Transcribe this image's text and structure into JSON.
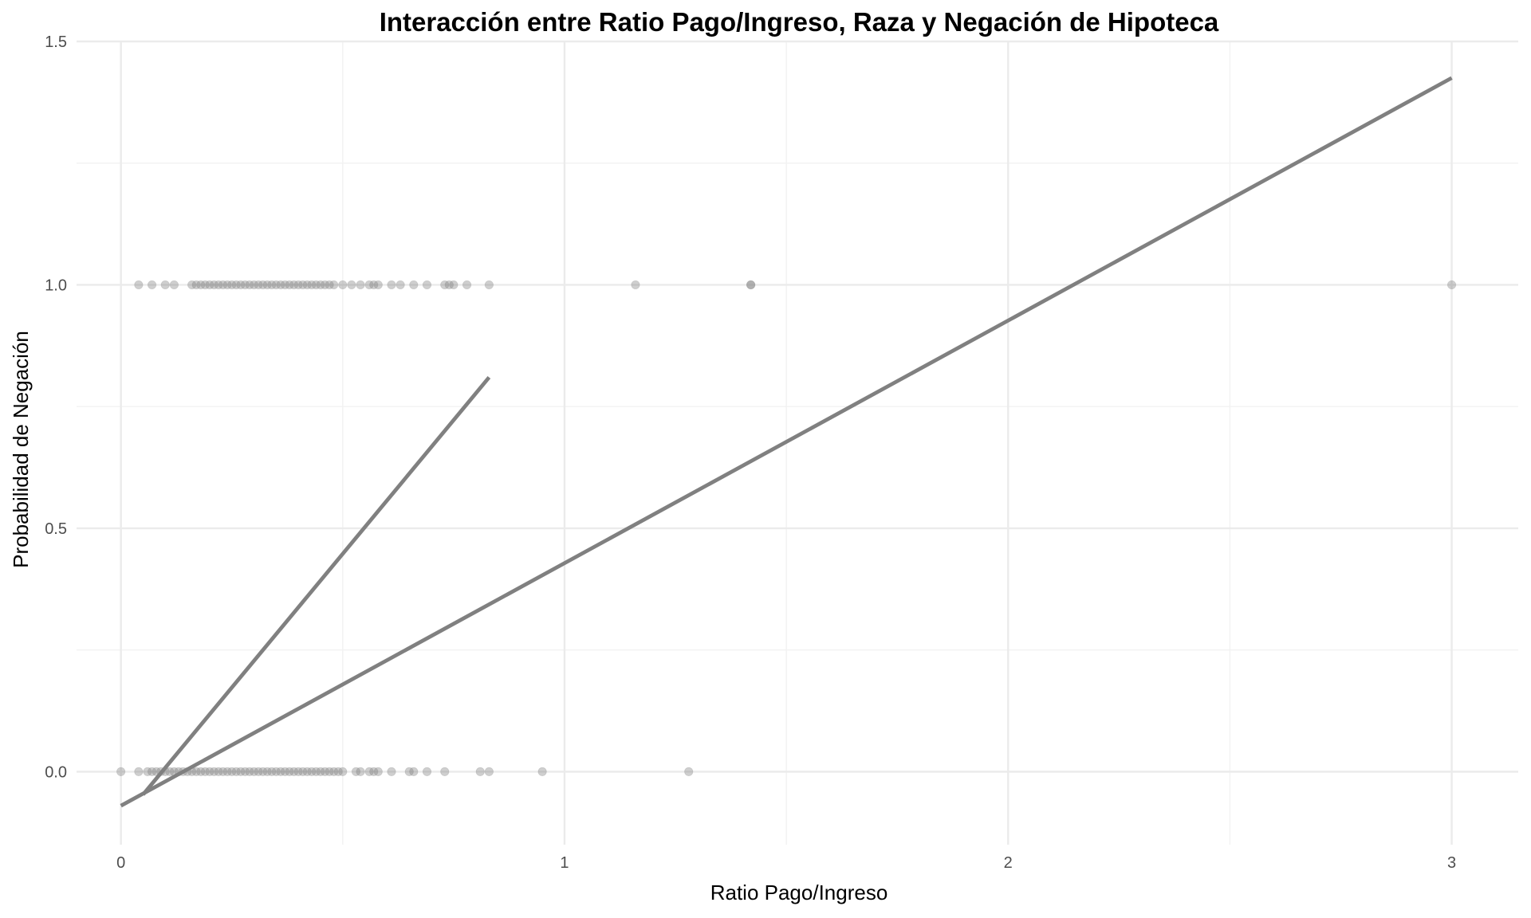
{
  "chart_data": {
    "type": "scatter",
    "title": "Interacción entre Ratio Pago/Ingreso, Raza y Negación de Hipoteca",
    "xlabel": "Ratio Pago/Ingreso",
    "ylabel": "Probabilidad de Negación",
    "xlim": [
      -0.1,
      3.15
    ],
    "ylim": [
      -0.15,
      1.5
    ],
    "x_ticks": [
      0,
      1,
      2,
      3
    ],
    "x_tick_labels": [
      "0",
      "1",
      "2",
      "3"
    ],
    "y_ticks": [
      0.0,
      0.5,
      1.0,
      1.5
    ],
    "y_tick_labels": [
      "0.0",
      "0.5",
      "1.0",
      "1.5"
    ],
    "grid": true,
    "point_color": "#808080",
    "line_color": "#808080",
    "series": [
      {
        "type": "scatter",
        "points": [
          {
            "x": 0.04,
            "y": 1
          },
          {
            "x": 0.07,
            "y": 1
          },
          {
            "x": 0.1,
            "y": 1
          },
          {
            "x": 0.12,
            "y": 1
          },
          {
            "x": 0.16,
            "y": 1
          },
          {
            "x": 0.17,
            "y": 1
          },
          {
            "x": 0.18,
            "y": 1
          },
          {
            "x": 0.19,
            "y": 1
          },
          {
            "x": 0.2,
            "y": 1
          },
          {
            "x": 0.21,
            "y": 1
          },
          {
            "x": 0.22,
            "y": 1
          },
          {
            "x": 0.23,
            "y": 1
          },
          {
            "x": 0.24,
            "y": 1
          },
          {
            "x": 0.25,
            "y": 1
          },
          {
            "x": 0.26,
            "y": 1
          },
          {
            "x": 0.27,
            "y": 1
          },
          {
            "x": 0.28,
            "y": 1
          },
          {
            "x": 0.29,
            "y": 1
          },
          {
            "x": 0.3,
            "y": 1
          },
          {
            "x": 0.31,
            "y": 1
          },
          {
            "x": 0.32,
            "y": 1
          },
          {
            "x": 0.33,
            "y": 1
          },
          {
            "x": 0.34,
            "y": 1
          },
          {
            "x": 0.35,
            "y": 1
          },
          {
            "x": 0.36,
            "y": 1
          },
          {
            "x": 0.37,
            "y": 1
          },
          {
            "x": 0.38,
            "y": 1
          },
          {
            "x": 0.39,
            "y": 1
          },
          {
            "x": 0.4,
            "y": 1
          },
          {
            "x": 0.41,
            "y": 1
          },
          {
            "x": 0.42,
            "y": 1
          },
          {
            "x": 0.43,
            "y": 1
          },
          {
            "x": 0.44,
            "y": 1
          },
          {
            "x": 0.45,
            "y": 1
          },
          {
            "x": 0.46,
            "y": 1
          },
          {
            "x": 0.47,
            "y": 1
          },
          {
            "x": 0.48,
            "y": 1
          },
          {
            "x": 0.5,
            "y": 1
          },
          {
            "x": 0.52,
            "y": 1
          },
          {
            "x": 0.54,
            "y": 1
          },
          {
            "x": 0.56,
            "y": 1
          },
          {
            "x": 0.57,
            "y": 1
          },
          {
            "x": 0.58,
            "y": 1
          },
          {
            "x": 0.61,
            "y": 1
          },
          {
            "x": 0.63,
            "y": 1
          },
          {
            "x": 0.66,
            "y": 1
          },
          {
            "x": 0.69,
            "y": 1
          },
          {
            "x": 0.73,
            "y": 1
          },
          {
            "x": 0.74,
            "y": 1
          },
          {
            "x": 0.75,
            "y": 1
          },
          {
            "x": 0.78,
            "y": 1
          },
          {
            "x": 0.83,
            "y": 1
          },
          {
            "x": 1.16,
            "y": 1
          },
          {
            "x": 1.42,
            "y": 1
          },
          {
            "x": 1.42,
            "y": 1
          },
          {
            "x": 3.0,
            "y": 1
          },
          {
            "x": 0.0,
            "y": 0
          },
          {
            "x": 0.04,
            "y": 0
          },
          {
            "x": 0.06,
            "y": 0
          },
          {
            "x": 0.07,
            "y": 0
          },
          {
            "x": 0.08,
            "y": 0
          },
          {
            "x": 0.09,
            "y": 0
          },
          {
            "x": 0.1,
            "y": 0
          },
          {
            "x": 0.11,
            "y": 0
          },
          {
            "x": 0.12,
            "y": 0
          },
          {
            "x": 0.13,
            "y": 0
          },
          {
            "x": 0.14,
            "y": 0
          },
          {
            "x": 0.15,
            "y": 0
          },
          {
            "x": 0.16,
            "y": 0
          },
          {
            "x": 0.17,
            "y": 0
          },
          {
            "x": 0.18,
            "y": 0
          },
          {
            "x": 0.19,
            "y": 0
          },
          {
            "x": 0.2,
            "y": 0
          },
          {
            "x": 0.21,
            "y": 0
          },
          {
            "x": 0.22,
            "y": 0
          },
          {
            "x": 0.23,
            "y": 0
          },
          {
            "x": 0.24,
            "y": 0
          },
          {
            "x": 0.25,
            "y": 0
          },
          {
            "x": 0.26,
            "y": 0
          },
          {
            "x": 0.27,
            "y": 0
          },
          {
            "x": 0.28,
            "y": 0
          },
          {
            "x": 0.29,
            "y": 0
          },
          {
            "x": 0.3,
            "y": 0
          },
          {
            "x": 0.31,
            "y": 0
          },
          {
            "x": 0.32,
            "y": 0
          },
          {
            "x": 0.33,
            "y": 0
          },
          {
            "x": 0.34,
            "y": 0
          },
          {
            "x": 0.35,
            "y": 0
          },
          {
            "x": 0.36,
            "y": 0
          },
          {
            "x": 0.37,
            "y": 0
          },
          {
            "x": 0.38,
            "y": 0
          },
          {
            "x": 0.39,
            "y": 0
          },
          {
            "x": 0.4,
            "y": 0
          },
          {
            "x": 0.41,
            "y": 0
          },
          {
            "x": 0.42,
            "y": 0
          },
          {
            "x": 0.43,
            "y": 0
          },
          {
            "x": 0.44,
            "y": 0
          },
          {
            "x": 0.45,
            "y": 0
          },
          {
            "x": 0.46,
            "y": 0
          },
          {
            "x": 0.47,
            "y": 0
          },
          {
            "x": 0.48,
            "y": 0
          },
          {
            "x": 0.49,
            "y": 0
          },
          {
            "x": 0.5,
            "y": 0
          },
          {
            "x": 0.53,
            "y": 0
          },
          {
            "x": 0.54,
            "y": 0
          },
          {
            "x": 0.56,
            "y": 0
          },
          {
            "x": 0.57,
            "y": 0
          },
          {
            "x": 0.58,
            "y": 0
          },
          {
            "x": 0.61,
            "y": 0
          },
          {
            "x": 0.65,
            "y": 0
          },
          {
            "x": 0.66,
            "y": 0
          },
          {
            "x": 0.69,
            "y": 0
          },
          {
            "x": 0.73,
            "y": 0
          },
          {
            "x": 0.81,
            "y": 0
          },
          {
            "x": 0.83,
            "y": 0
          },
          {
            "x": 0.95,
            "y": 0
          },
          {
            "x": 1.28,
            "y": 0
          }
        ]
      },
      {
        "type": "line",
        "x": [
          0.05,
          0.83
        ],
        "y": [
          -0.047,
          0.81
        ]
      },
      {
        "type": "line",
        "x": [
          0.0,
          3.0
        ],
        "y": [
          -0.07,
          1.425
        ]
      }
    ]
  }
}
